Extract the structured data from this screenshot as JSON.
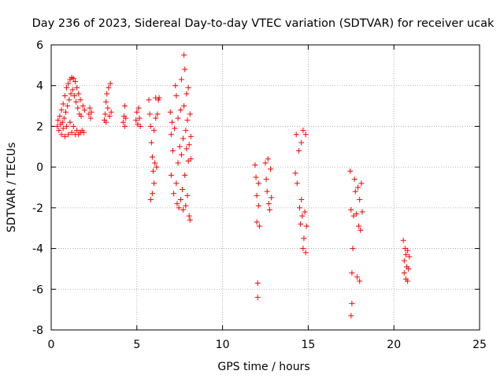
{
  "chart_data": {
    "type": "scatter",
    "title": "Day 236 of 2023, Sidereal Day-to-day VTEC variation (SDTVAR) for receiver ucak",
    "xlabel": "GPS time / hours",
    "ylabel": "SDTVAR / TECUs",
    "xlim": [
      0,
      25
    ],
    "ylim": [
      -8,
      6
    ],
    "xticks": [
      0,
      5,
      10,
      15,
      20,
      25
    ],
    "yticks": [
      -8,
      -6,
      -4,
      -2,
      0,
      2,
      4,
      6
    ],
    "grid": true,
    "marker": "+",
    "color": "#ff0000",
    "series": [
      {
        "name": "SDTVAR",
        "points": [
          [
            0.35,
            2.0
          ],
          [
            0.4,
            2.3
          ],
          [
            0.45,
            1.8
          ],
          [
            0.5,
            2.5
          ],
          [
            0.55,
            2.1
          ],
          [
            0.6,
            1.6
          ],
          [
            0.6,
            2.8
          ],
          [
            0.65,
            2.2
          ],
          [
            0.7,
            1.9
          ],
          [
            0.7,
            3.1
          ],
          [
            0.75,
            2.4
          ],
          [
            0.8,
            1.5
          ],
          [
            0.8,
            3.5
          ],
          [
            0.85,
            2.7
          ],
          [
            0.9,
            2.0
          ],
          [
            0.9,
            3.9
          ],
          [
            0.95,
            3.0
          ],
          [
            1.0,
            1.6
          ],
          [
            1.0,
            4.1
          ],
          [
            1.05,
            3.3
          ],
          [
            1.1,
            2.2
          ],
          [
            1.1,
            4.3
          ],
          [
            1.15,
            3.6
          ],
          [
            1.2,
            1.7
          ],
          [
            1.2,
            4.4
          ],
          [
            1.25,
            3.8
          ],
          [
            1.3,
            2.0
          ],
          [
            1.3,
            4.35
          ],
          [
            1.35,
            3.5
          ],
          [
            1.4,
            1.6
          ],
          [
            1.4,
            4.2
          ],
          [
            1.45,
            3.2
          ],
          [
            1.5,
            1.8
          ],
          [
            1.5,
            3.9
          ],
          [
            1.55,
            2.9
          ],
          [
            1.6,
            1.6
          ],
          [
            1.6,
            3.6
          ],
          [
            1.65,
            2.6
          ],
          [
            1.7,
            1.7
          ],
          [
            1.7,
            3.3
          ],
          [
            1.75,
            2.5
          ],
          [
            1.8,
            1.8
          ],
          [
            1.85,
            3.0
          ],
          [
            1.9,
            1.7
          ],
          [
            1.95,
            2.8
          ],
          [
            2.2,
            2.6
          ],
          [
            2.25,
            2.9
          ],
          [
            2.3,
            2.4
          ],
          [
            2.35,
            2.7
          ],
          [
            3.1,
            2.3
          ],
          [
            3.15,
            2.6
          ],
          [
            3.2,
            3.2
          ],
          [
            3.2,
            2.2
          ],
          [
            3.25,
            3.6
          ],
          [
            3.3,
            2.9
          ],
          [
            3.35,
            3.9
          ],
          [
            3.4,
            2.5
          ],
          [
            3.45,
            4.1
          ],
          [
            3.5,
            2.7
          ],
          [
            4.2,
            2.2
          ],
          [
            4.25,
            2.5
          ],
          [
            4.3,
            2.0
          ],
          [
            4.3,
            3.0
          ],
          [
            4.35,
            2.4
          ],
          [
            4.95,
            2.3
          ],
          [
            5.0,
            2.7
          ],
          [
            5.05,
            2.1
          ],
          [
            5.1,
            2.9
          ],
          [
            5.15,
            2.4
          ],
          [
            5.2,
            2.0
          ],
          [
            5.7,
            3.3
          ],
          [
            5.75,
            2.6
          ],
          [
            5.8,
            -1.6
          ],
          [
            5.8,
            2.0
          ],
          [
            5.85,
            1.2
          ],
          [
            5.9,
            -1.3
          ],
          [
            5.9,
            0.5
          ],
          [
            5.95,
            -0.2
          ],
          [
            6.0,
            -0.8
          ],
          [
            6.0,
            1.8
          ],
          [
            6.05,
            0.2
          ],
          [
            6.1,
            2.4
          ],
          [
            6.1,
            3.4
          ],
          [
            6.15,
            0.0
          ],
          [
            6.2,
            2.6
          ],
          [
            6.25,
            3.3
          ],
          [
            6.3,
            3.4
          ],
          [
            6.95,
            2.7
          ],
          [
            7.0,
            1.6
          ],
          [
            7.0,
            -0.4
          ],
          [
            7.05,
            2.2
          ],
          [
            7.1,
            0.8
          ],
          [
            7.15,
            -1.3
          ],
          [
            7.2,
            1.9
          ],
          [
            7.25,
            4.0
          ],
          [
            7.3,
            3.5
          ],
          [
            7.3,
            -0.8
          ],
          [
            7.35,
            -1.8
          ],
          [
            7.4,
            0.2
          ],
          [
            7.4,
            2.4
          ],
          [
            7.45,
            -2.0
          ],
          [
            7.5,
            1.0
          ],
          [
            7.55,
            -1.6
          ],
          [
            7.55,
            2.8
          ],
          [
            7.6,
            0.6
          ],
          [
            7.6,
            4.3
          ],
          [
            7.65,
            -1.1
          ],
          [
            7.7,
            1.4
          ],
          [
            7.7,
            -2.1
          ],
          [
            7.75,
            5.5
          ],
          [
            7.75,
            3.0
          ],
          [
            7.8,
            -0.4
          ],
          [
            7.8,
            4.8
          ],
          [
            7.85,
            1.8
          ],
          [
            7.85,
            -1.9
          ],
          [
            7.9,
            3.6
          ],
          [
            7.9,
            0.9
          ],
          [
            7.95,
            -1.4
          ],
          [
            7.95,
            2.3
          ],
          [
            8.0,
            3.9
          ],
          [
            8.0,
            0.3
          ],
          [
            8.05,
            1.1
          ],
          [
            8.05,
            -2.4
          ],
          [
            8.1,
            2.6
          ],
          [
            8.1,
            -2.6
          ],
          [
            8.15,
            0.4
          ],
          [
            8.15,
            1.5
          ],
          [
            11.9,
            0.1
          ],
          [
            11.95,
            -0.5
          ],
          [
            12.0,
            -1.4
          ],
          [
            12.0,
            -2.7
          ],
          [
            12.05,
            -5.7
          ],
          [
            12.05,
            -6.4
          ],
          [
            12.1,
            -1.9
          ],
          [
            12.1,
            -0.8
          ],
          [
            12.15,
            -2.9
          ],
          [
            12.5,
            0.2
          ],
          [
            12.55,
            -0.6
          ],
          [
            12.6,
            -1.2
          ],
          [
            12.65,
            0.4
          ],
          [
            12.7,
            -1.8
          ],
          [
            12.75,
            -2.1
          ],
          [
            12.8,
            -0.1
          ],
          [
            12.85,
            -1.5
          ],
          [
            14.25,
            -0.3
          ],
          [
            14.3,
            1.6
          ],
          [
            14.35,
            -0.8
          ],
          [
            14.45,
            0.8
          ],
          [
            14.5,
            -2.0
          ],
          [
            14.55,
            -2.8
          ],
          [
            14.6,
            1.2
          ],
          [
            14.6,
            -1.6
          ],
          [
            14.65,
            -2.4
          ],
          [
            14.7,
            1.8
          ],
          [
            14.7,
            -4.0
          ],
          [
            14.75,
            -3.5
          ],
          [
            14.8,
            -2.2
          ],
          [
            14.85,
            -4.2
          ],
          [
            14.85,
            1.6
          ],
          [
            14.9,
            -2.9
          ],
          [
            17.45,
            -0.2
          ],
          [
            17.5,
            -7.3
          ],
          [
            17.5,
            -2.1
          ],
          [
            17.55,
            -5.2
          ],
          [
            17.55,
            -6.7
          ],
          [
            17.6,
            -4.0
          ],
          [
            17.65,
            -2.4
          ],
          [
            17.7,
            -0.6
          ],
          [
            17.75,
            -1.2
          ],
          [
            17.8,
            -2.3
          ],
          [
            17.85,
            -5.4
          ],
          [
            17.9,
            -1.0
          ],
          [
            17.95,
            -2.9
          ],
          [
            18.0,
            -1.6
          ],
          [
            18.0,
            -5.6
          ],
          [
            18.05,
            -3.1
          ],
          [
            18.1,
            -0.8
          ],
          [
            18.15,
            -2.2
          ],
          [
            20.55,
            -3.6
          ],
          [
            20.6,
            -4.6
          ],
          [
            20.6,
            -5.2
          ],
          [
            20.65,
            -4.0
          ],
          [
            20.7,
            -5.5
          ],
          [
            20.7,
            -4.3
          ],
          [
            20.75,
            -4.9
          ],
          [
            20.8,
            -5.6
          ],
          [
            20.8,
            -4.1
          ],
          [
            20.85,
            -5.0
          ],
          [
            20.9,
            -4.4
          ]
        ]
      }
    ]
  }
}
